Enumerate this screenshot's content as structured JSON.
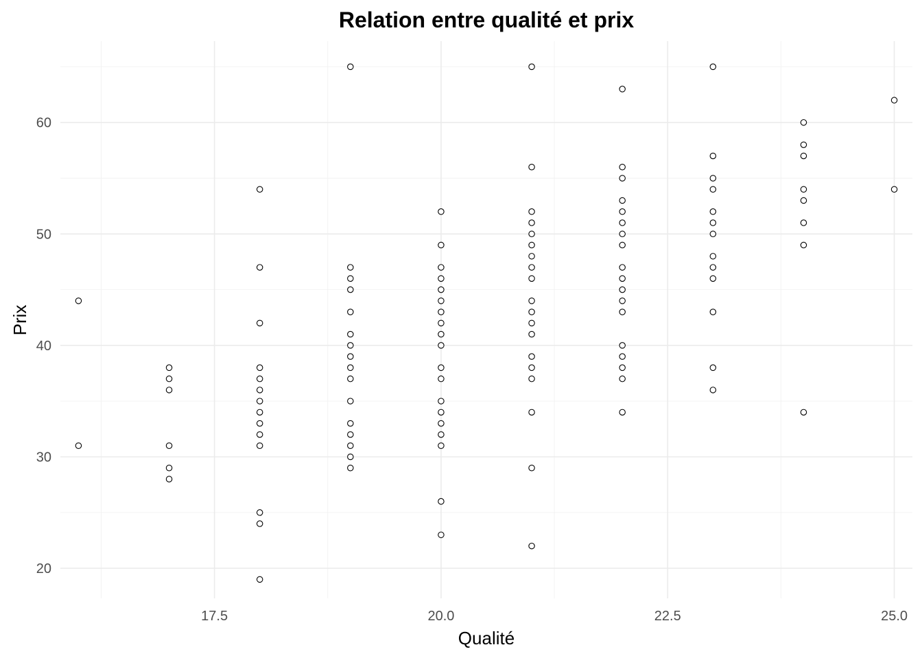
{
  "chart_data": {
    "type": "scatter",
    "title": "Relation entre qualité et prix",
    "xlabel": "Qualité",
    "ylabel": "Prix",
    "xlim": [
      15.8,
      25.2
    ],
    "ylim": [
      17.3,
      67.3
    ],
    "x_ticks": [
      17.5,
      20.0,
      22.5,
      25.0
    ],
    "x_tick_labels": [
      "17.5",
      "20.0",
      "22.5",
      "25.0"
    ],
    "y_ticks": [
      20,
      30,
      40,
      50,
      60
    ],
    "y_tick_labels": [
      "20",
      "30",
      "40",
      "50",
      "60"
    ],
    "grid": true,
    "legend": "none",
    "colors": {
      "point_stroke": "#000000",
      "point_fill": "#ffffff",
      "grid": "#ebebeb",
      "tick_text": "#4d4d4d"
    },
    "points": [
      {
        "x": 16,
        "y": 44
      },
      {
        "x": 16,
        "y": 31
      },
      {
        "x": 17,
        "y": 38
      },
      {
        "x": 17,
        "y": 37
      },
      {
        "x": 17,
        "y": 36
      },
      {
        "x": 17,
        "y": 31
      },
      {
        "x": 17,
        "y": 29
      },
      {
        "x": 17,
        "y": 28
      },
      {
        "x": 18,
        "y": 54
      },
      {
        "x": 18,
        "y": 47
      },
      {
        "x": 18,
        "y": 42
      },
      {
        "x": 18,
        "y": 38
      },
      {
        "x": 18,
        "y": 37
      },
      {
        "x": 18,
        "y": 36
      },
      {
        "x": 18,
        "y": 35
      },
      {
        "x": 18,
        "y": 34
      },
      {
        "x": 18,
        "y": 33
      },
      {
        "x": 18,
        "y": 32
      },
      {
        "x": 18,
        "y": 31
      },
      {
        "x": 18,
        "y": 25
      },
      {
        "x": 18,
        "y": 24
      },
      {
        "x": 18,
        "y": 19
      },
      {
        "x": 19,
        "y": 65
      },
      {
        "x": 19,
        "y": 47
      },
      {
        "x": 19,
        "y": 46
      },
      {
        "x": 19,
        "y": 45
      },
      {
        "x": 19,
        "y": 43
      },
      {
        "x": 19,
        "y": 41
      },
      {
        "x": 19,
        "y": 40
      },
      {
        "x": 19,
        "y": 39
      },
      {
        "x": 19,
        "y": 38
      },
      {
        "x": 19,
        "y": 37
      },
      {
        "x": 19,
        "y": 35
      },
      {
        "x": 19,
        "y": 33
      },
      {
        "x": 19,
        "y": 32
      },
      {
        "x": 19,
        "y": 31
      },
      {
        "x": 19,
        "y": 30
      },
      {
        "x": 19,
        "y": 29
      },
      {
        "x": 20,
        "y": 52
      },
      {
        "x": 20,
        "y": 49
      },
      {
        "x": 20,
        "y": 47
      },
      {
        "x": 20,
        "y": 46
      },
      {
        "x": 20,
        "y": 45
      },
      {
        "x": 20,
        "y": 44
      },
      {
        "x": 20,
        "y": 43
      },
      {
        "x": 20,
        "y": 42
      },
      {
        "x": 20,
        "y": 41
      },
      {
        "x": 20,
        "y": 40
      },
      {
        "x": 20,
        "y": 38
      },
      {
        "x": 20,
        "y": 37
      },
      {
        "x": 20,
        "y": 35
      },
      {
        "x": 20,
        "y": 34
      },
      {
        "x": 20,
        "y": 33
      },
      {
        "x": 20,
        "y": 32
      },
      {
        "x": 20,
        "y": 31
      },
      {
        "x": 20,
        "y": 26
      },
      {
        "x": 20,
        "y": 23
      },
      {
        "x": 21,
        "y": 65
      },
      {
        "x": 21,
        "y": 56
      },
      {
        "x": 21,
        "y": 52
      },
      {
        "x": 21,
        "y": 51
      },
      {
        "x": 21,
        "y": 50
      },
      {
        "x": 21,
        "y": 49
      },
      {
        "x": 21,
        "y": 48
      },
      {
        "x": 21,
        "y": 47
      },
      {
        "x": 21,
        "y": 46
      },
      {
        "x": 21,
        "y": 44
      },
      {
        "x": 21,
        "y": 43
      },
      {
        "x": 21,
        "y": 42
      },
      {
        "x": 21,
        "y": 41
      },
      {
        "x": 21,
        "y": 39
      },
      {
        "x": 21,
        "y": 38
      },
      {
        "x": 21,
        "y": 37
      },
      {
        "x": 21,
        "y": 34
      },
      {
        "x": 21,
        "y": 29
      },
      {
        "x": 21,
        "y": 22
      },
      {
        "x": 22,
        "y": 63
      },
      {
        "x": 22,
        "y": 56
      },
      {
        "x": 22,
        "y": 55
      },
      {
        "x": 22,
        "y": 53
      },
      {
        "x": 22,
        "y": 52
      },
      {
        "x": 22,
        "y": 51
      },
      {
        "x": 22,
        "y": 50
      },
      {
        "x": 22,
        "y": 49
      },
      {
        "x": 22,
        "y": 47
      },
      {
        "x": 22,
        "y": 46
      },
      {
        "x": 22,
        "y": 45
      },
      {
        "x": 22,
        "y": 44
      },
      {
        "x": 22,
        "y": 43
      },
      {
        "x": 22,
        "y": 40
      },
      {
        "x": 22,
        "y": 39
      },
      {
        "x": 22,
        "y": 38
      },
      {
        "x": 22,
        "y": 37
      },
      {
        "x": 22,
        "y": 34
      },
      {
        "x": 23,
        "y": 65
      },
      {
        "x": 23,
        "y": 57
      },
      {
        "x": 23,
        "y": 55
      },
      {
        "x": 23,
        "y": 54
      },
      {
        "x": 23,
        "y": 52
      },
      {
        "x": 23,
        "y": 51
      },
      {
        "x": 23,
        "y": 50
      },
      {
        "x": 23,
        "y": 48
      },
      {
        "x": 23,
        "y": 47
      },
      {
        "x": 23,
        "y": 46
      },
      {
        "x": 23,
        "y": 43
      },
      {
        "x": 23,
        "y": 38
      },
      {
        "x": 23,
        "y": 36
      },
      {
        "x": 24,
        "y": 60
      },
      {
        "x": 24,
        "y": 58
      },
      {
        "x": 24,
        "y": 57
      },
      {
        "x": 24,
        "y": 54
      },
      {
        "x": 24,
        "y": 53
      },
      {
        "x": 24,
        "y": 51
      },
      {
        "x": 24,
        "y": 49
      },
      {
        "x": 24,
        "y": 34
      },
      {
        "x": 25,
        "y": 62
      },
      {
        "x": 25,
        "y": 54
      }
    ]
  }
}
